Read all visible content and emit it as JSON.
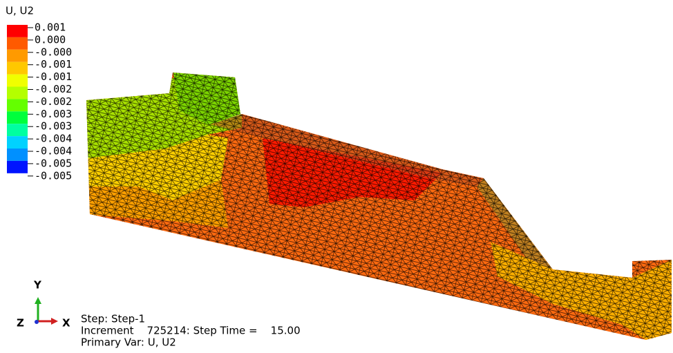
{
  "legend": {
    "title": "U, U2",
    "labels": [
      "0.001",
      "0.000",
      "-0.000",
      "-0.001",
      "-0.001",
      "-0.002",
      "-0.002",
      "-0.003",
      "-0.003",
      "-0.004",
      "-0.004",
      "-0.005",
      "-0.005"
    ],
    "colors": [
      "#ff0000",
      "#ff5a00",
      "#ff9a00",
      "#ffc800",
      "#f0ff00",
      "#b4ff00",
      "#64ff00",
      "#00ff3c",
      "#00ffa0",
      "#00d2ff",
      "#0090ff",
      "#0014ff"
    ]
  },
  "triad": {
    "y": "Y",
    "z": "Z",
    "x": "X"
  },
  "info": {
    "step": "Step: Step-1",
    "increment": "Increment    725214: Step Time =    15.00",
    "primary_var": "Primary Var: U, U2"
  }
}
